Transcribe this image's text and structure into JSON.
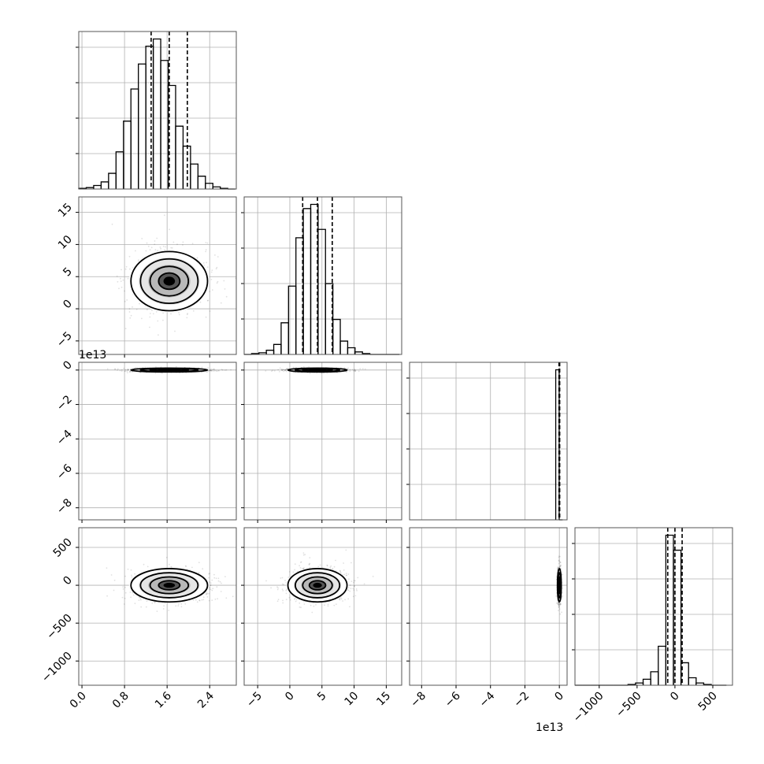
{
  "chart_data": {
    "type": "corner",
    "axis_offsets": {
      "p3_y": "1e13",
      "p3_x": "1e13"
    },
    "parameters": [
      {
        "range": [
          -0.06,
          2.9
        ],
        "ticks": [
          0.0,
          0.8,
          1.6,
          2.4
        ],
        "tick_labels": [
          "0.0",
          "0.8",
          "1.6",
          "2.4"
        ],
        "quantiles": [
          1.3,
          1.64,
          1.98
        ],
        "median": 1.64,
        "sigma": 0.36
      },
      {
        "range": [
          -7.1,
          17.4
        ],
        "ticks": [
          -5,
          0,
          5,
          10,
          15
        ],
        "tick_labels": [
          "−5",
          "0",
          "5",
          "10",
          "15"
        ],
        "quantiles": [
          2.0,
          4.3,
          6.6
        ],
        "median": 4.3,
        "sigma": 2.3
      },
      {
        "range": [
          -8.7,
          0.45
        ],
        "ticks": [
          -8,
          -6,
          -4,
          -2,
          0
        ],
        "tick_labels": [
          "−8",
          "−6",
          "−4",
          "−2",
          "0"
        ],
        "quantiles": [
          -0.02,
          0.0,
          0.02
        ],
        "median": 0.0,
        "sigma": 0.05
      },
      {
        "range": [
          -1320,
          760
        ],
        "ticks": [
          -1000,
          -500,
          0,
          500
        ],
        "tick_labels": [
          "−1000",
          "−500",
          "0",
          "500"
        ],
        "quantiles": [
          -95,
          0,
          95
        ],
        "median": 0,
        "sigma": 110
      }
    ],
    "histograms": [
      {
        "param": 0,
        "bins": [
          -0.06,
          0.08,
          0.22,
          0.36,
          0.5,
          0.64,
          0.78,
          0.92,
          1.06,
          1.2,
          1.34,
          1.48,
          1.62,
          1.76,
          1.9,
          2.04,
          2.18,
          2.32,
          2.46,
          2.6,
          2.74,
          2.88
        ],
        "counts": [
          1,
          2,
          5,
          10,
          22,
          52,
          95,
          140,
          175,
          200,
          210,
          180,
          145,
          88,
          60,
          35,
          18,
          8,
          3,
          1,
          0
        ]
      },
      {
        "param": 1,
        "bins": [
          -7.1,
          -5.95,
          -4.8,
          -3.65,
          -2.5,
          -1.35,
          -0.2,
          0.95,
          2.1,
          3.25,
          4.4,
          5.55,
          6.7,
          7.85,
          9.0,
          10.15,
          11.3,
          12.45,
          13.6,
          14.75,
          15.9,
          17.05
        ],
        "counts": [
          0,
          1,
          2,
          5,
          12,
          38,
          82,
          140,
          175,
          180,
          150,
          85,
          42,
          16,
          8,
          3,
          1,
          0,
          0,
          0,
          0
        ]
      },
      {
        "param": 2,
        "bins": [
          -0.21,
          -0.01,
          0.19
        ],
        "counts": [
          204,
          0
        ]
      },
      {
        "param": 3,
        "bins": [
          -1320,
          -1220,
          -1120,
          -1020,
          -920,
          -820,
          -720,
          -620,
          -520,
          -420,
          -320,
          -220,
          -120,
          -20,
          80,
          180,
          280,
          380,
          480,
          580,
          680
        ],
        "counts": [
          0,
          0,
          0,
          0,
          0,
          0,
          0,
          1,
          3,
          8,
          18,
          52,
          200,
          180,
          30,
          10,
          3,
          1,
          0,
          0
        ]
      }
    ]
  }
}
